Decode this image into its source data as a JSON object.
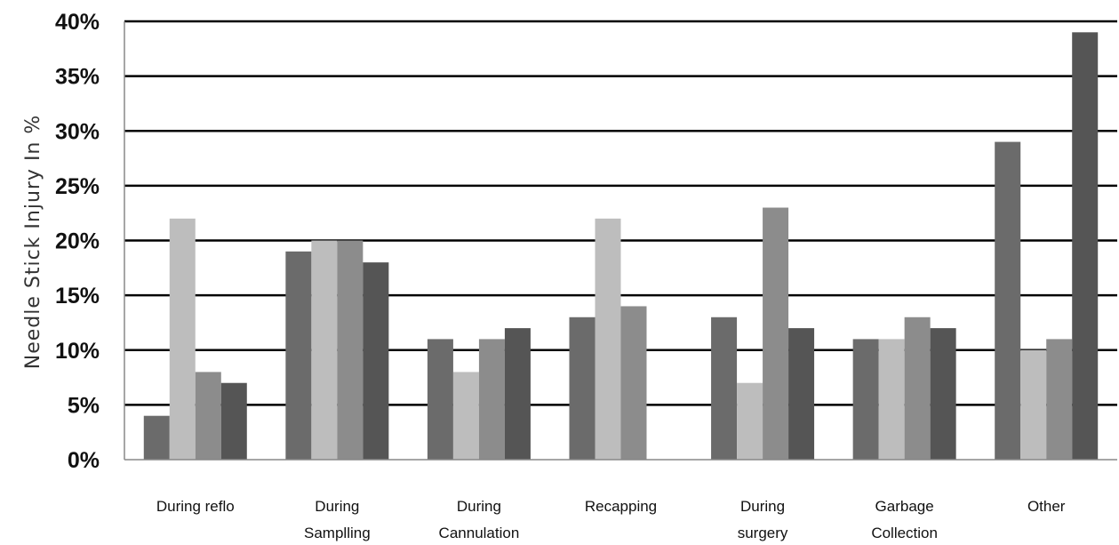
{
  "chart_data": {
    "type": "bar",
    "title": "",
    "xlabel": "",
    "ylabel": "Needle Stick Injury  In  %",
    "ylim": [
      0,
      40
    ],
    "yticks": [
      "0%",
      "5%",
      "10%",
      "15%",
      "20%",
      "25%",
      "30%",
      "35%",
      "40%"
    ],
    "grid": true,
    "legend": "none",
    "categories": [
      [
        "During reflo"
      ],
      [
        "During",
        "Samplling"
      ],
      [
        "During",
        "Cannulation"
      ],
      [
        "Recapping"
      ],
      [
        "During",
        "surgery"
      ],
      [
        "Garbage",
        "Collection"
      ],
      [
        "Other"
      ]
    ],
    "series": [
      {
        "color": "#6b6b6b",
        "values": [
          4,
          19,
          11,
          13,
          13,
          11,
          29
        ]
      },
      {
        "color": "#bdbdbd",
        "values": [
          22,
          20,
          8,
          22,
          7,
          11,
          10
        ]
      },
      {
        "color": "#8c8c8c",
        "values": [
          8,
          20,
          11,
          14,
          23,
          13,
          11
        ]
      },
      {
        "color": "#555555",
        "values": [
          7,
          18,
          12,
          null,
          12,
          12,
          39
        ]
      }
    ]
  }
}
